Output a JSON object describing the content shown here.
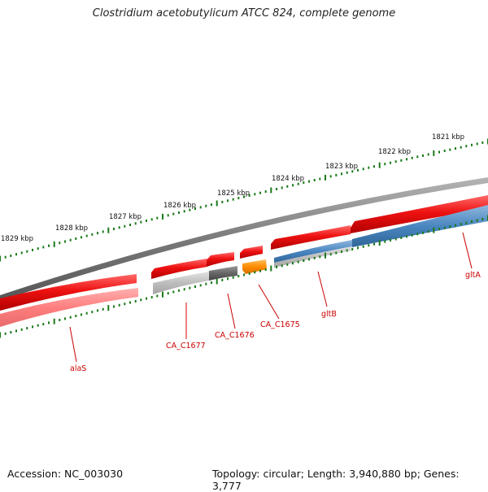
{
  "title": "Clostridium acetobutylicum ATCC 824, complete genome",
  "accession_text": "Accession: NC_003030",
  "topology_text": "Topology: circular; Length: 3,940,880 bp; Genes: 3,777",
  "genome": {
    "length_bp": 3940880,
    "ticks_kbp": [
      1821,
      1822,
      1823,
      1824,
      1825,
      1826,
      1827,
      1828,
      1829
    ],
    "tick_labels": [
      "1821 kbp",
      "1822 kbp",
      "1823 kbp",
      "1824 kbp",
      "1825 kbp",
      "1826 kbp",
      "1827 kbp",
      "1828 kbp",
      "1829 kbp"
    ]
  },
  "genes": [
    {
      "name": "gltA",
      "color": "#4a86c0"
    },
    {
      "name": "gltB",
      "color": "#4a86c0"
    },
    {
      "name": "CA_C1675",
      "color": "#ff8c00"
    },
    {
      "name": "CA_C1676",
      "color": "#6a6a6a"
    },
    {
      "name": "CA_C1677",
      "color": "#bdbdbd"
    },
    {
      "name": "alaS",
      "color": "#ff7f7f"
    }
  ],
  "colors": {
    "cds": "#ee1111",
    "backbone": "#7a7a7a",
    "tick": "#1a7a1a",
    "label": "#cc0000"
  }
}
